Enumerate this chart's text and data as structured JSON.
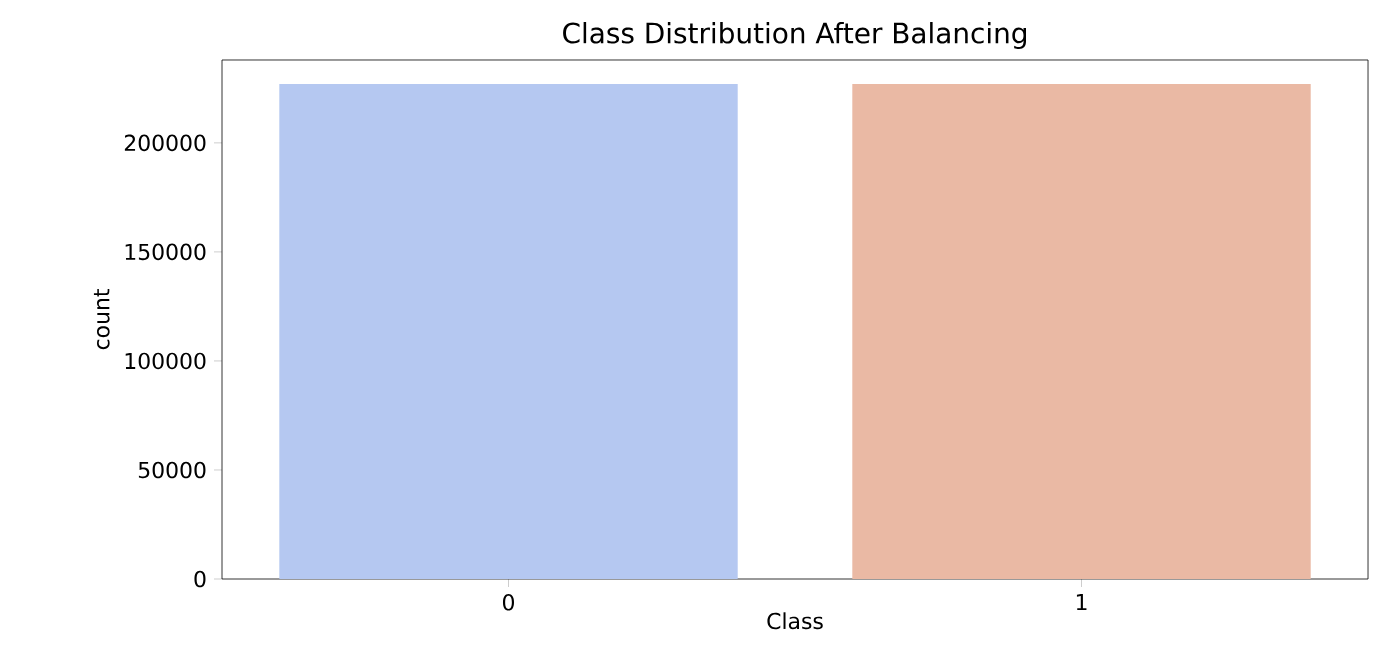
{
  "chart_data": {
    "type": "bar",
    "title": "Class Distribution After Balancing",
    "xlabel": "Class",
    "ylabel": "count",
    "categories": [
      "0",
      "1"
    ],
    "values": [
      227000,
      227000
    ],
    "colors": [
      "#b5c8f1",
      "#eab9a4"
    ],
    "ylim": [
      0,
      238000
    ],
    "yticks": [
      0,
      50000,
      100000,
      150000,
      200000
    ]
  }
}
